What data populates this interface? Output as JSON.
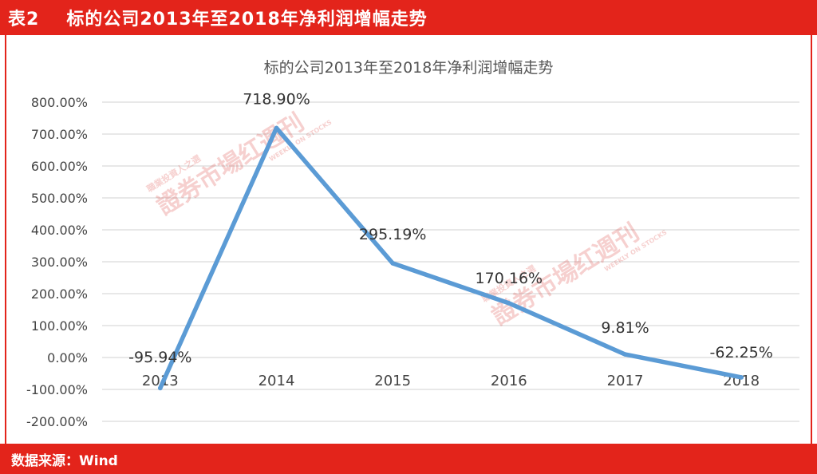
{
  "header": {
    "label": "表2",
    "title": "标的公司2013年至2018年净利润增幅走势"
  },
  "footer": {
    "source": "数据来源：Wind"
  },
  "watermark": {
    "main": "證券市場",
    "brand": "週刊",
    "sub": "職業投資人之選",
    "en": "WEEKLY ON STOCKS"
  },
  "chart_data": {
    "type": "line",
    "title": "标的公司2013年至2018年净利润增幅走势",
    "categories": [
      "2013",
      "2014",
      "2015",
      "2016",
      "2017",
      "2018"
    ],
    "series": [
      {
        "values": [
          -95.94,
          718.9,
          295.19,
          170.16,
          9.81,
          -62.25
        ],
        "data_labels": [
          "-95.94%",
          "718.90%",
          "295.19%",
          "170.16%",
          "9.81%",
          "-62.25%"
        ],
        "color": "#5b9bd5"
      }
    ],
    "y_ticks": [
      "800.00%",
      "700.00%",
      "600.00%",
      "500.00%",
      "400.00%",
      "300.00%",
      "200.00%",
      "100.00%",
      "0.00%",
      "-100.00%",
      "-200.00%"
    ],
    "ylim": [
      -200,
      800
    ],
    "grid": true,
    "legend": "none",
    "xlabel": "",
    "ylabel": ""
  }
}
